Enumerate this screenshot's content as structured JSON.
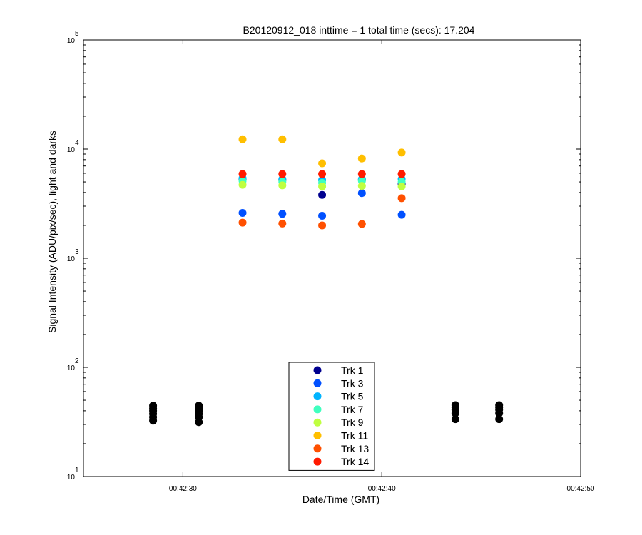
{
  "chart_data": {
    "type": "scatter",
    "title": "B20120912_018 inttime = 1 total time (secs): 17.204",
    "xlabel": "Date/Time (GMT)",
    "ylabel": "Signal Intensity (ADU/pix/sec), light and darks",
    "x_ticks": [
      "00:42:30",
      "00:42:40",
      "00:42:50"
    ],
    "xlim": [
      "00:42:25",
      "00:42:50"
    ],
    "y_scale": "log",
    "y_ticks": [
      {
        "base": "10",
        "exp": "1"
      },
      {
        "base": "10",
        "exp": "2"
      },
      {
        "base": "10",
        "exp": "3"
      },
      {
        "base": "10",
        "exp": "4"
      },
      {
        "base": "10",
        "exp": "5"
      }
    ],
    "ylim": [
      10,
      100000
    ],
    "grid": false,
    "legend_position": "bottom-center",
    "series": [
      {
        "name": "Trk 1",
        "color": "#00008f",
        "points": [
          [
            "00:42:33",
            5300
          ],
          [
            "00:42:35",
            5200
          ],
          [
            "00:42:37",
            3800
          ],
          [
            "00:42:39",
            5200
          ],
          [
            "00:42:41",
            4800
          ]
        ]
      },
      {
        "name": "Trk 3",
        "color": "#0050ff",
        "points": [
          [
            "00:42:33",
            2600
          ],
          [
            "00:42:35",
            2550
          ],
          [
            "00:42:37",
            2450
          ],
          [
            "00:42:39",
            3950
          ],
          [
            "00:42:41",
            2500
          ]
        ]
      },
      {
        "name": "Trk 5",
        "color": "#00b4ff",
        "points": [
          [
            "00:42:33",
            5400
          ],
          [
            "00:42:35",
            5300
          ],
          [
            "00:42:37",
            5200
          ],
          [
            "00:42:39",
            5300
          ],
          [
            "00:42:41",
            5300
          ]
        ]
      },
      {
        "name": "Trk 7",
        "color": "#40ffbf",
        "points": [
          [
            "00:42:33",
            5100
          ],
          [
            "00:42:35",
            5000
          ],
          [
            "00:42:37",
            4900
          ],
          [
            "00:42:39",
            5100
          ],
          [
            "00:42:41",
            5000
          ]
        ]
      },
      {
        "name": "Trk 9",
        "color": "#bfff40",
        "points": [
          [
            "00:42:33",
            4700
          ],
          [
            "00:42:35",
            4650
          ],
          [
            "00:42:37",
            4550
          ],
          [
            "00:42:39",
            4600
          ],
          [
            "00:42:41",
            4550
          ]
        ]
      },
      {
        "name": "Trk 11",
        "color": "#ffbf00",
        "points": [
          [
            "00:42:33",
            12300
          ],
          [
            "00:42:35",
            12300
          ],
          [
            "00:42:37",
            7400
          ],
          [
            "00:42:39",
            8200
          ],
          [
            "00:42:41",
            9300
          ]
        ]
      },
      {
        "name": "Trk 13",
        "color": "#ff5000",
        "points": [
          [
            "00:42:33",
            2120
          ],
          [
            "00:42:35",
            2080
          ],
          [
            "00:42:37",
            2000
          ],
          [
            "00:42:39",
            2060
          ],
          [
            "00:42:41",
            3550
          ]
        ]
      },
      {
        "name": "Trk 14",
        "color": "#ff1a00",
        "points": [
          [
            "00:42:33",
            5900
          ],
          [
            "00:42:35",
            5900
          ],
          [
            "00:42:37",
            5900
          ],
          [
            "00:42:39",
            5900
          ],
          [
            "00:42:41",
            5900
          ]
        ]
      }
    ],
    "darks": {
      "color": "#000000",
      "points": [
        [
          "00:42:28.5",
          32.5
        ],
        [
          "00:42:28.5",
          35
        ],
        [
          "00:42:28.5",
          37.5
        ],
        [
          "00:42:28.5",
          40
        ],
        [
          "00:42:28.5",
          42
        ],
        [
          "00:42:28.5",
          44.5
        ],
        [
          "00:42:30.8",
          31.5
        ],
        [
          "00:42:30.8",
          35
        ],
        [
          "00:42:30.8",
          37.5
        ],
        [
          "00:42:30.8",
          40
        ],
        [
          "00:42:30.8",
          42
        ],
        [
          "00:42:30.8",
          44.5
        ],
        [
          "00:42:43.7",
          33.5
        ],
        [
          "00:42:43.7",
          38
        ],
        [
          "00:42:43.7",
          41
        ],
        [
          "00:42:43.7",
          43
        ],
        [
          "00:42:43.7",
          45
        ],
        [
          "00:42:45.9",
          33.5
        ],
        [
          "00:42:45.9",
          38
        ],
        [
          "00:42:45.9",
          41
        ],
        [
          "00:42:45.9",
          43
        ],
        [
          "00:42:45.9",
          45
        ]
      ]
    }
  }
}
